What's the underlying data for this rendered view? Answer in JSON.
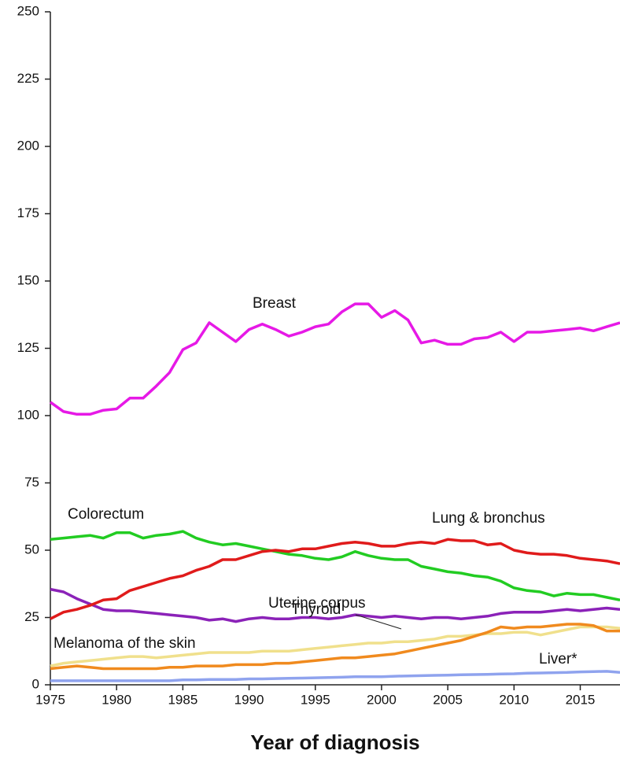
{
  "chart_data": {
    "type": "line",
    "x_label": "Year of diagnosis",
    "x": [
      1975,
      1976,
      1977,
      1978,
      1979,
      1980,
      1981,
      1982,
      1983,
      1984,
      1985,
      1986,
      1987,
      1988,
      1989,
      1990,
      1991,
      1992,
      1993,
      1994,
      1995,
      1996,
      1997,
      1998,
      1999,
      2000,
      2001,
      2002,
      2003,
      2004,
      2005,
      2006,
      2007,
      2008,
      2009,
      2010,
      2011,
      2012,
      2013,
      2014,
      2015,
      2016,
      2017,
      2018
    ],
    "xlim": [
      1975,
      2018
    ],
    "xticks": [
      1975,
      1980,
      1985,
      1990,
      1995,
      2000,
      2005,
      2010,
      2015
    ],
    "ylim": [
      0,
      250
    ],
    "yticks": [
      0,
      25,
      50,
      75,
      100,
      125,
      150,
      175,
      200,
      225,
      250
    ],
    "series": [
      {
        "name": "Liver*",
        "color": "#8fa3ee",
        "values": [
          1.5,
          1.5,
          1.5,
          1.5,
          1.5,
          1.5,
          1.5,
          1.5,
          1.5,
          1.5,
          1.8,
          1.8,
          2,
          2,
          2,
          2.2,
          2.2,
          2.3,
          2.4,
          2.5,
          2.6,
          2.7,
          2.8,
          3,
          3,
          3,
          3.2,
          3.3,
          3.4,
          3.5,
          3.6,
          3.7,
          3.8,
          3.9,
          4,
          4.1,
          4.3,
          4.4,
          4.5,
          4.6,
          4.8,
          4.9,
          5,
          4.6
        ]
      },
      {
        "name": "Melanoma of the skin",
        "color": "#f0e08c",
        "values": [
          7,
          8,
          8.5,
          9,
          9.5,
          10,
          10.5,
          10.5,
          10,
          10.5,
          11,
          11.5,
          12,
          12,
          12,
          12,
          12.5,
          12.5,
          12.5,
          13,
          13.5,
          14,
          14.5,
          15,
          15.5,
          15.5,
          16,
          16,
          16.5,
          17,
          18,
          18,
          18.5,
          19,
          19,
          19.5,
          19.5,
          18.5,
          19.5,
          20.5,
          21.5,
          21.5,
          21.5,
          21
        ]
      },
      {
        "name": "Thyroid",
        "color": "#f08a1e",
        "values": [
          6,
          6.5,
          7,
          6.5,
          6,
          6,
          6,
          6,
          6,
          6.5,
          6.5,
          7,
          7,
          7,
          7.5,
          7.5,
          7.5,
          8,
          8,
          8.5,
          9,
          9.5,
          10,
          10,
          10.5,
          11,
          11.5,
          12.5,
          13.5,
          14.5,
          15.5,
          16.5,
          18,
          19.5,
          21.5,
          21,
          21.5,
          21.5,
          22,
          22.5,
          22.5,
          22,
          20,
          20
        ]
      },
      {
        "name": "Uterine corpus",
        "color": "#8b22b8",
        "values": [
          35.5,
          34.5,
          32,
          30,
          28,
          27.5,
          27.5,
          27,
          26.5,
          26,
          25.5,
          25,
          24,
          24.5,
          23.5,
          24.5,
          25,
          24.5,
          24.5,
          25,
          25,
          24.5,
          25,
          26,
          25.5,
          25,
          25.5,
          25,
          24.5,
          25,
          25,
          24.5,
          25,
          25.5,
          26.5,
          27,
          27,
          27,
          27.5,
          28,
          27.5,
          28,
          28.5,
          28
        ]
      },
      {
        "name": "Colorectum",
        "color": "#22cc22",
        "values": [
          54,
          54.5,
          55,
          55.5,
          54.5,
          56.5,
          56.5,
          54.5,
          55.5,
          56,
          57,
          54.5,
          53,
          52,
          52.5,
          51.5,
          50.5,
          49.5,
          48.5,
          48,
          47,
          46.5,
          47.5,
          49.5,
          48,
          47,
          46.5,
          46.5,
          44,
          43,
          42,
          41.5,
          40.5,
          40,
          38.5,
          36,
          35,
          34.5,
          33,
          34,
          33.5,
          33.5,
          32.5,
          31.5
        ]
      },
      {
        "name": "Lung & bronchus",
        "color": "#e01b1b",
        "values": [
          24.5,
          27,
          28,
          29.5,
          31.5,
          32,
          35,
          36.5,
          38,
          39.5,
          40.5,
          42.5,
          44,
          46.5,
          46.5,
          48,
          49.5,
          50,
          49.5,
          50.5,
          50.5,
          51.5,
          52.5,
          53,
          52.5,
          51.5,
          51.5,
          52.5,
          53,
          52.5,
          54,
          53.5,
          53.5,
          52,
          52.5,
          50,
          49,
          48.5,
          48.5,
          48,
          47,
          46.5,
          46,
          45
        ]
      },
      {
        "name": "Breast",
        "color": "#e619e6",
        "values": [
          105,
          101.5,
          100.5,
          100.5,
          102,
          102.5,
          106.5,
          106.5,
          111,
          116,
          124.5,
          127,
          134.5,
          131,
          127.5,
          132,
          134,
          132,
          129.5,
          131,
          133,
          134,
          138.5,
          141.5,
          141.5,
          136.5,
          139,
          135.5,
          127,
          128,
          126.5,
          126.5,
          128.5,
          129,
          131,
          127.5,
          131,
          131,
          131.5,
          132,
          132.5,
          131.5,
          133,
          134.5
        ]
      }
    ]
  }
}
